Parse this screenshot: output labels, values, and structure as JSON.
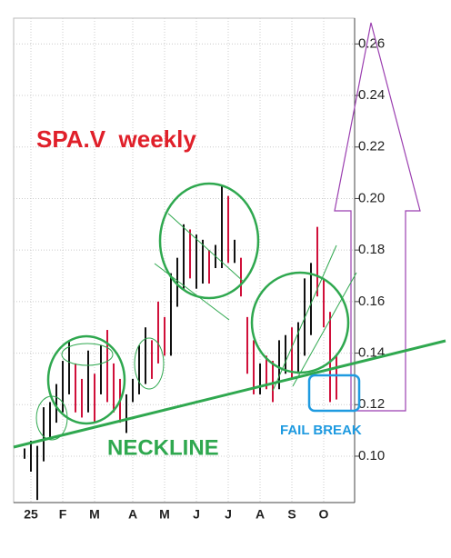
{
  "chart_data": {
    "type": "ohlc",
    "title": "SPA.V  weekly",
    "annotations": [
      "NECKLINE",
      "FAIL BREAK"
    ],
    "x_labels": [
      {
        "label": "25",
        "index": 1
      },
      {
        "label": "F",
        "index": 6
      },
      {
        "label": "M",
        "index": 11
      },
      {
        "label": "A",
        "index": 17
      },
      {
        "label": "M",
        "index": 22
      },
      {
        "label": "J",
        "index": 27
      },
      {
        "label": "J",
        "index": 32
      },
      {
        "label": "A",
        "index": 37
      },
      {
        "label": "S",
        "index": 42
      },
      {
        "label": "O",
        "index": 47
      }
    ],
    "high": [
      0.103,
      0.106,
      0.104,
      0.119,
      0.121,
      0.128,
      0.137,
      0.145,
      0.136,
      0.13,
      0.141,
      0.132,
      0.143,
      0.149,
      0.136,
      0.13,
      0.124,
      0.13,
      0.143,
      0.15,
      0.145,
      0.16,
      0.154,
      0.171,
      0.177,
      0.19,
      0.188,
      0.186,
      0.184,
      0.18,
      0.182,
      0.205,
      0.201,
      0.184,
      0.177,
      0.154,
      0.145,
      0.136,
      0.139,
      0.137,
      0.145,
      0.147,
      0.15,
      0.152,
      0.169,
      0.175,
      0.189,
      0.169,
      0.156,
      0.139
    ],
    "low": [
      0.099,
      0.094,
      0.083,
      0.098,
      0.107,
      0.113,
      0.117,
      0.124,
      0.117,
      0.115,
      0.117,
      0.113,
      0.124,
      0.121,
      0.117,
      0.113,
      0.109,
      0.121,
      0.124,
      0.128,
      0.13,
      0.136,
      0.139,
      0.139,
      0.158,
      0.165,
      0.169,
      0.165,
      0.167,
      0.167,
      0.173,
      0.173,
      0.175,
      0.175,
      0.162,
      0.132,
      0.124,
      0.124,
      0.126,
      0.121,
      0.126,
      0.132,
      0.13,
      0.132,
      0.139,
      0.147,
      0.162,
      0.15,
      0.121,
      0.122
    ],
    "up_color": "#111111",
    "down_color": "#d0103a",
    "down": [
      false,
      false,
      false,
      false,
      false,
      false,
      false,
      false,
      true,
      true,
      false,
      true,
      false,
      true,
      true,
      true,
      false,
      false,
      false,
      false,
      true,
      true,
      true,
      false,
      false,
      false,
      true,
      false,
      false,
      true,
      false,
      false,
      true,
      false,
      true,
      true,
      true,
      false,
      true,
      true,
      false,
      false,
      true,
      false,
      false,
      false,
      true,
      true,
      true,
      true
    ],
    "ylim": [
      0.082,
      0.27
    ],
    "yticks": [
      {
        "value": 0.1,
        "label": "0.10"
      },
      {
        "value": 0.12,
        "label": "0.12"
      },
      {
        "value": 0.14,
        "label": "0.14"
      },
      {
        "value": 0.16,
        "label": "0.16"
      },
      {
        "value": 0.18,
        "label": "0.18"
      },
      {
        "value": 0.2,
        "label": "0.20"
      },
      {
        "value": 0.22,
        "label": "0.22"
      },
      {
        "value": 0.24,
        "label": "0.24"
      },
      {
        "value": 0.26,
        "label": "0.26"
      }
    ],
    "grid": true
  }
}
